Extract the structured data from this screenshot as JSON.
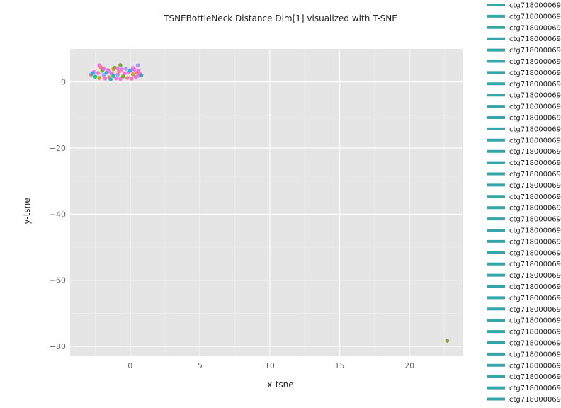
{
  "chart_data": {
    "type": "scatter",
    "title": "TSNEBottleNeck Distance Dim[1] visualized with T-SNE",
    "xlabel": "x-tsne",
    "ylabel": "y-tsne",
    "xlim": [
      -4.3,
      23.8
    ],
    "ylim": [
      -83.0,
      10.0
    ],
    "xticks": [
      0,
      5,
      10,
      15,
      20
    ],
    "yticks": [
      0,
      -20,
      -40,
      -60,
      -80
    ],
    "xtick_labels": [
      "0",
      "5",
      "10",
      "15",
      "20"
    ],
    "ytick_labels": [
      "0",
      "−20",
      "−40",
      "−60",
      "−80"
    ],
    "grid": true,
    "legend_position": "right",
    "legend_entries": [
      "ctg718000069",
      "ctg718000069",
      "ctg718000069",
      "ctg718000069",
      "ctg718000069",
      "ctg718000069",
      "ctg718000069",
      "ctg718000069",
      "ctg718000069",
      "ctg718000069",
      "ctg718000069",
      "ctg718000069",
      "ctg718000069",
      "ctg718000069",
      "ctg718000069",
      "ctg718000069",
      "ctg718000069",
      "ctg718000069",
      "ctg718000069",
      "ctg718000069",
      "ctg718000069",
      "ctg718000069",
      "ctg718000069",
      "ctg718000069",
      "ctg718000069",
      "ctg718000069",
      "ctg718000069",
      "ctg718000069",
      "ctg718000069",
      "ctg718000069",
      "ctg718000069",
      "ctg718000069",
      "ctg718000069",
      "ctg718000069",
      "ctg718000069",
      "ctg718000069"
    ],
    "legend_color": "#35a5a8",
    "point_colors": [
      "#f8766d",
      "#c49a00",
      "#53b400",
      "#00c094",
      "#00b6eb",
      "#a58aff",
      "#fb61d7",
      "#7f9a2a",
      "#e76bf3",
      "#2aa6a6"
    ],
    "points": [
      {
        "x": -2.8,
        "y": 2.2,
        "c": 0
      },
      {
        "x": -2.6,
        "y": 3.0,
        "c": 8
      },
      {
        "x": -2.5,
        "y": 1.6,
        "c": 3
      },
      {
        "x": -2.3,
        "y": 2.7,
        "c": 6
      },
      {
        "x": -2.2,
        "y": 1.2,
        "c": 1
      },
      {
        "x": -2.2,
        "y": 5.0,
        "c": 8
      },
      {
        "x": -2.1,
        "y": 4.4,
        "c": 0
      },
      {
        "x": -2.0,
        "y": 3.4,
        "c": 2
      },
      {
        "x": -1.9,
        "y": 2.1,
        "c": 5
      },
      {
        "x": -1.8,
        "y": 1.0,
        "c": 6
      },
      {
        "x": -1.7,
        "y": 2.8,
        "c": 4
      },
      {
        "x": -1.6,
        "y": 3.6,
        "c": 8
      },
      {
        "x": -1.5,
        "y": 1.4,
        "c": 0
      },
      {
        "x": -1.4,
        "y": 0.8,
        "c": 9
      },
      {
        "x": -1.3,
        "y": 2.5,
        "c": 6
      },
      {
        "x": -1.2,
        "y": 3.9,
        "c": 1
      },
      {
        "x": -1.1,
        "y": 4.3,
        "c": 7
      },
      {
        "x": -1.0,
        "y": 1.1,
        "c": 8
      },
      {
        "x": -0.9,
        "y": 2.2,
        "c": 5
      },
      {
        "x": -0.8,
        "y": 3.1,
        "c": 0
      },
      {
        "x": -0.7,
        "y": 0.9,
        "c": 6
      },
      {
        "x": -0.7,
        "y": 5.1,
        "c": 7
      },
      {
        "x": -0.6,
        "y": 3.8,
        "c": 8
      },
      {
        "x": -0.5,
        "y": 1.7,
        "c": 2
      },
      {
        "x": -0.4,
        "y": 2.6,
        "c": 6
      },
      {
        "x": -0.3,
        "y": 4.0,
        "c": 5
      },
      {
        "x": -0.2,
        "y": 1.2,
        "c": 0
      },
      {
        "x": -0.1,
        "y": 2.9,
        "c": 8
      },
      {
        "x": 0.0,
        "y": 3.5,
        "c": 4
      },
      {
        "x": 0.1,
        "y": 1.0,
        "c": 6
      },
      {
        "x": 0.2,
        "y": 2.3,
        "c": 1
      },
      {
        "x": 0.3,
        "y": 3.7,
        "c": 8
      },
      {
        "x": 0.4,
        "y": 1.5,
        "c": 6
      },
      {
        "x": 0.5,
        "y": 2.8,
        "c": 0
      },
      {
        "x": 0.55,
        "y": 5.0,
        "c": 5
      },
      {
        "x": 0.6,
        "y": 1.9,
        "c": 8
      },
      {
        "x": 0.7,
        "y": 2.4,
        "c": 6
      },
      {
        "x": 0.8,
        "y": 2.0,
        "c": 9
      },
      {
        "x": -2.7,
        "y": 2.6,
        "c": 4
      },
      {
        "x": -1.9,
        "y": 4.0,
        "c": 6
      },
      {
        "x": -1.5,
        "y": 3.2,
        "c": 8
      },
      {
        "x": -0.9,
        "y": 4.1,
        "c": 6
      },
      {
        "x": 0.2,
        "y": 4.2,
        "c": 8
      },
      {
        "x": 0.6,
        "y": 3.3,
        "c": 6
      },
      {
        "x": -1.2,
        "y": 1.8,
        "c": 3
      },
      {
        "x": 22.7,
        "y": -78.3,
        "c": 7
      }
    ]
  }
}
